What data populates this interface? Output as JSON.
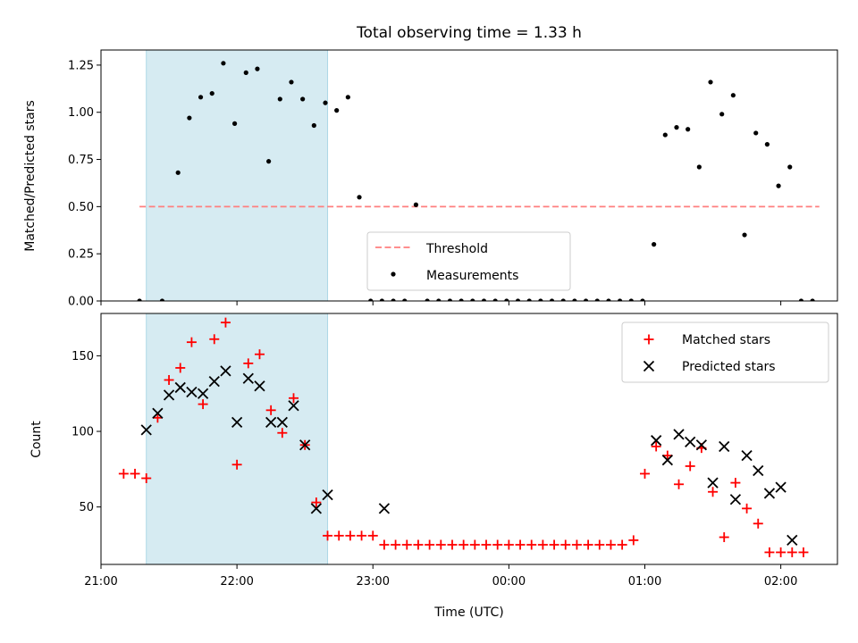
{
  "chart_data": [
    {
      "type": "scatter",
      "title": "Total observing time = 1.33 h",
      "ylabel": "Matched/Predicted stars",
      "xlabel": "",
      "xlim": [
        "21:00",
        "02:25"
      ],
      "ylim": [
        0,
        1.33
      ],
      "y_ticks": [
        "0.00",
        "0.25",
        "0.50",
        "0.75",
        "1.00",
        "1.25"
      ],
      "shaded_interval": [
        "21:20",
        "22:40"
      ],
      "threshold": {
        "name": "Threshold",
        "value": 0.5,
        "x_range": [
          "21:17",
          "02:17"
        ],
        "color": "#ff7f7f"
      },
      "legend": [
        "Threshold",
        "Measurements"
      ],
      "series": [
        {
          "name": "Measurements",
          "color": "#000000",
          "x": [
            "21:17",
            "21:27",
            "21:34",
            "21:39",
            "21:44",
            "21:49",
            "21:54",
            "21:59",
            "22:04",
            "22:09",
            "22:14",
            "22:19",
            "22:24",
            "22:29",
            "22:34",
            "22:39",
            "22:44",
            "22:49",
            "22:54",
            "22:59",
            "23:04",
            "23:09",
            "23:14",
            "23:19",
            "23:24",
            "23:29",
            "23:34",
            "23:39",
            "23:44",
            "23:49",
            "23:54",
            "23:59",
            "00:04",
            "00:09",
            "00:14",
            "00:19",
            "00:24",
            "00:29",
            "00:34",
            "00:39",
            "00:44",
            "00:49",
            "00:54",
            "00:59",
            "01:04",
            "01:09",
            "01:14",
            "01:19",
            "01:24",
            "01:29",
            "01:34",
            "01:39",
            "01:44",
            "01:49",
            "01:54",
            "01:59",
            "02:04",
            "02:09",
            "02:14"
          ],
          "y": [
            0,
            0,
            0.68,
            0.97,
            1.08,
            1.1,
            1.26,
            0.94,
            1.21,
            1.23,
            0.74,
            1.07,
            1.16,
            1.07,
            0.93,
            1.05,
            1.01,
            1.08,
            0.55,
            0,
            0,
            0,
            0,
            0.51,
            0,
            0,
            0,
            0,
            0,
            0,
            0,
            0,
            0,
            0,
            0,
            0,
            0,
            0,
            0,
            0,
            0,
            0,
            0,
            0,
            0.3,
            0.88,
            0.92,
            0.91,
            0.71,
            1.16,
            0.99,
            1.09,
            0.35,
            0.89,
            0.83,
            0.61,
            0.71,
            0,
            0
          ]
        }
      ]
    },
    {
      "type": "scatter",
      "ylabel": "Count",
      "xlabel": "Time (UTC)",
      "xlim": [
        "21:00",
        "02:25"
      ],
      "ylim": [
        12,
        178
      ],
      "x_ticks": [
        "21:00",
        "22:00",
        "23:00",
        "00:00",
        "01:00",
        "02:00"
      ],
      "y_ticks": [
        "50",
        "100",
        "150"
      ],
      "shaded_interval": [
        "21:20",
        "22:40"
      ],
      "legend": [
        "Matched stars",
        "Predicted stars"
      ],
      "series": [
        {
          "name": "Matched stars",
          "color": "#ff0000",
          "marker": "+",
          "x": [
            "21:10",
            "21:15",
            "21:20",
            "21:25",
            "21:30",
            "21:35",
            "21:40",
            "21:45",
            "21:50",
            "21:55",
            "22:00",
            "22:05",
            "22:10",
            "22:15",
            "22:20",
            "22:25",
            "22:30",
            "22:35",
            "22:40",
            "22:45",
            "22:50",
            "22:55",
            "23:00",
            "23:05",
            "23:10",
            "23:15",
            "23:20",
            "23:25",
            "23:30",
            "23:35",
            "23:40",
            "23:45",
            "23:50",
            "23:55",
            "00:00",
            "00:05",
            "00:10",
            "00:15",
            "00:20",
            "00:25",
            "00:30",
            "00:35",
            "00:40",
            "00:45",
            "00:50",
            "00:55",
            "01:00",
            "01:05",
            "01:10",
            "01:15",
            "01:20",
            "01:25",
            "01:30",
            "01:35",
            "01:40",
            "01:45",
            "01:50",
            "01:55",
            "02:00",
            "02:05",
            "02:10"
          ],
          "y": [
            72,
            72,
            69,
            109,
            134,
            142,
            159,
            118,
            161,
            172,
            78,
            145,
            151,
            114,
            99,
            122,
            91,
            53,
            31,
            31,
            31,
            31,
            31,
            25,
            25,
            25,
            25,
            25,
            25,
            25,
            25,
            25,
            25,
            25,
            25,
            25,
            25,
            25,
            25,
            25,
            25,
            25,
            25,
            25,
            25,
            28,
            72,
            90,
            84,
            65,
            77,
            89,
            60,
            30,
            66,
            49,
            39,
            20,
            20,
            20,
            20
          ]
        },
        {
          "name": "Predicted stars",
          "color": "#000000",
          "marker": "x",
          "x": [
            "21:20",
            "21:25",
            "21:30",
            "21:35",
            "21:40",
            "21:45",
            "21:50",
            "21:55",
            "22:00",
            "22:05",
            "22:10",
            "22:15",
            "22:20",
            "22:25",
            "22:30",
            "22:35",
            "22:40",
            "23:05",
            "01:05",
            "01:10",
            "01:15",
            "01:20",
            "01:25",
            "01:30",
            "01:35",
            "01:40",
            "01:45",
            "01:50",
            "01:55",
            "02:00",
            "02:05"
          ],
          "y": [
            101,
            112,
            124,
            129,
            126,
            125,
            133,
            140,
            106,
            135,
            130,
            106,
            106,
            117,
            91,
            49,
            58,
            49,
            94,
            81,
            98,
            93,
            91,
            66,
            90,
            55,
            84,
            74,
            59,
            63,
            28
          ]
        }
      ]
    }
  ]
}
